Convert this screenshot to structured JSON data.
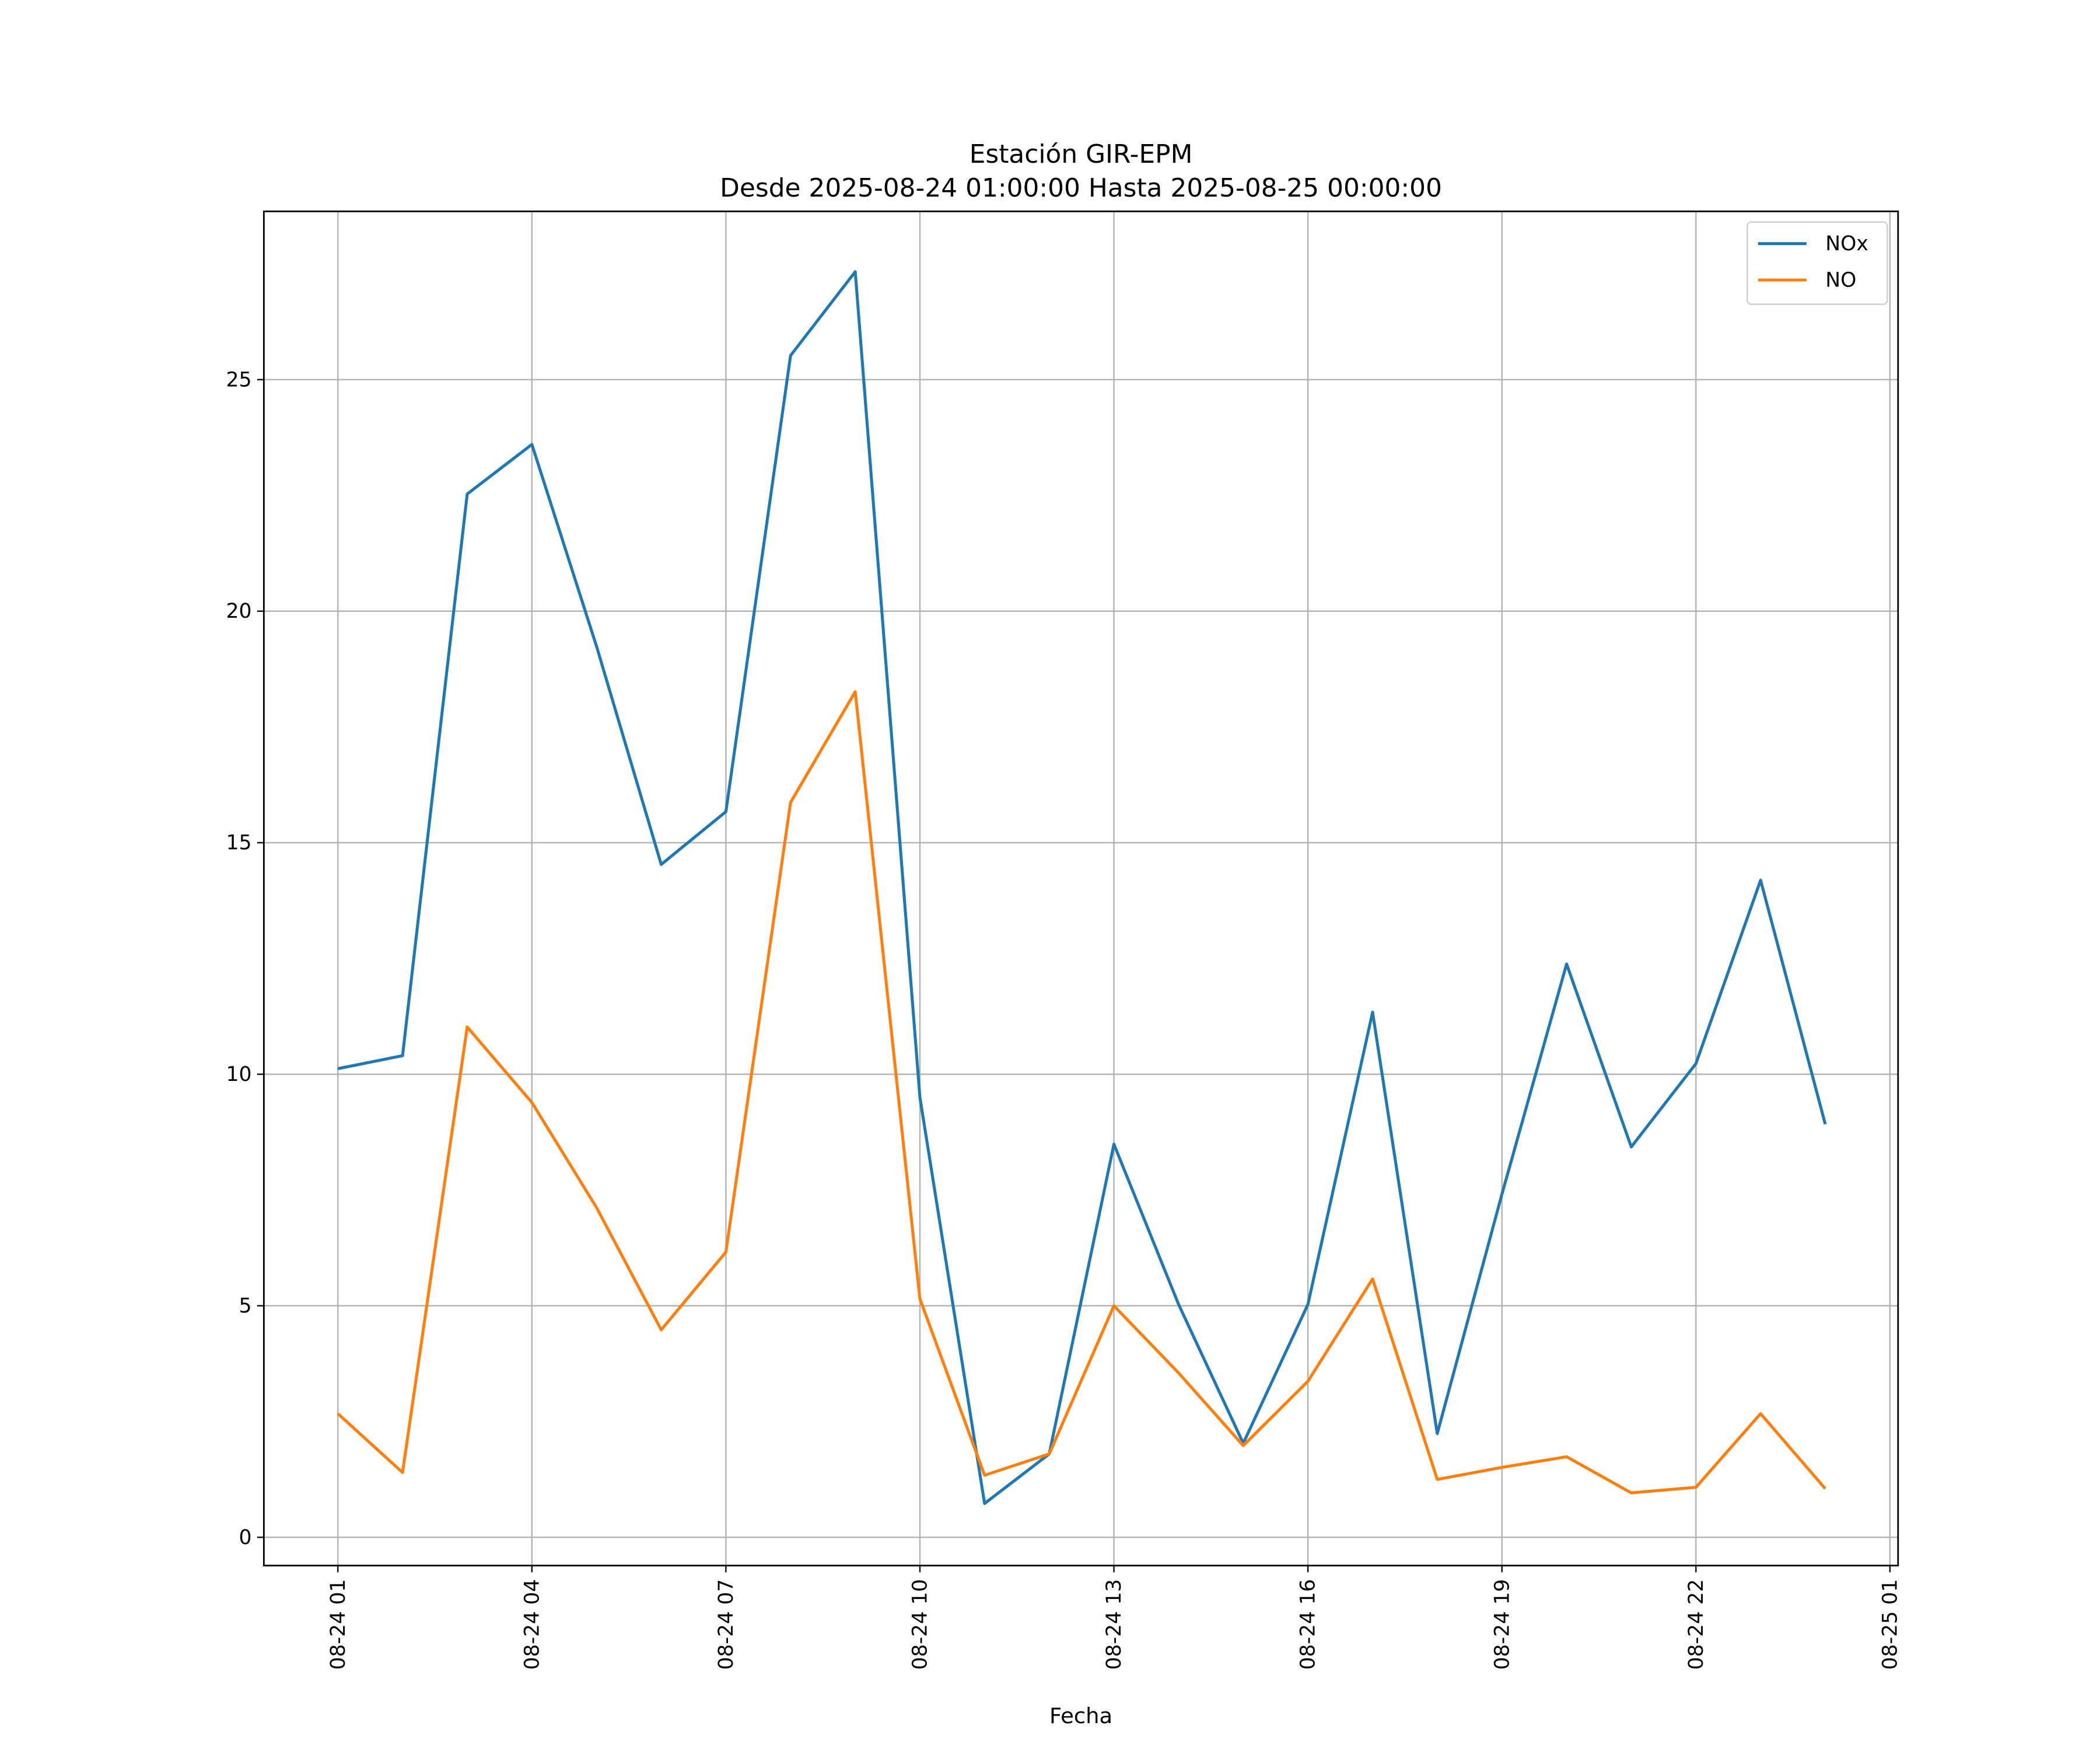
{
  "chart_data": {
    "type": "line",
    "title": "Estación GIR-EPM",
    "subtitle": "Desde 2025-08-24 01:00:00 Hasta 2025-08-25 00:00:00",
    "xlabel": "Fecha",
    "ylabel": "",
    "x": [
      "2025-08-24 01:00",
      "2025-08-24 02:00",
      "2025-08-24 03:00",
      "2025-08-24 04:00",
      "2025-08-24 05:00",
      "2025-08-24 06:00",
      "2025-08-24 07:00",
      "2025-08-24 08:00",
      "2025-08-24 09:00",
      "2025-08-24 10:00",
      "2025-08-24 11:00",
      "2025-08-24 12:00",
      "2025-08-24 13:00",
      "2025-08-24 14:00",
      "2025-08-24 15:00",
      "2025-08-24 16:00",
      "2025-08-24 17:00",
      "2025-08-24 18:00",
      "2025-08-24 19:00",
      "2025-08-24 20:00",
      "2025-08-24 21:00",
      "2025-08-24 22:00",
      "2025-08-24 23:00",
      "2025-08-25 00:00"
    ],
    "series": [
      {
        "name": "NOx",
        "color": "#1f77b4",
        "values": [
          10.12,
          10.4,
          22.53,
          23.6,
          19.24,
          14.53,
          15.67,
          25.52,
          27.33,
          9.5,
          0.73,
          1.8,
          8.49,
          5.03,
          2.03,
          5.03,
          11.34,
          2.24,
          7.41,
          12.38,
          8.43,
          10.23,
          14.19,
          8.92
        ]
      },
      {
        "name": "NO",
        "color": "#ff7f0e",
        "values": [
          2.67,
          1.4,
          11.02,
          9.39,
          7.12,
          4.48,
          6.16,
          15.87,
          18.26,
          5.15,
          1.34,
          1.8,
          5.0,
          3.55,
          1.98,
          3.37,
          5.58,
          1.25,
          1.51,
          1.74,
          0.96,
          1.08,
          2.67,
          1.05
        ]
      }
    ],
    "xticks": [
      "08-24 01",
      "08-24 04",
      "08-24 07",
      "08-24 10",
      "08-24 13",
      "08-24 16",
      "08-24 19",
      "08-24 22",
      "08-25 01"
    ],
    "yticks": [
      "0",
      "5",
      "10",
      "15",
      "20",
      "25"
    ],
    "ylim": [
      -0.6,
      28.7
    ],
    "xlim": [
      "2025-08-24 00:00",
      "2025-08-25 01:10"
    ],
    "grid": true,
    "legend_position": "top-right"
  }
}
